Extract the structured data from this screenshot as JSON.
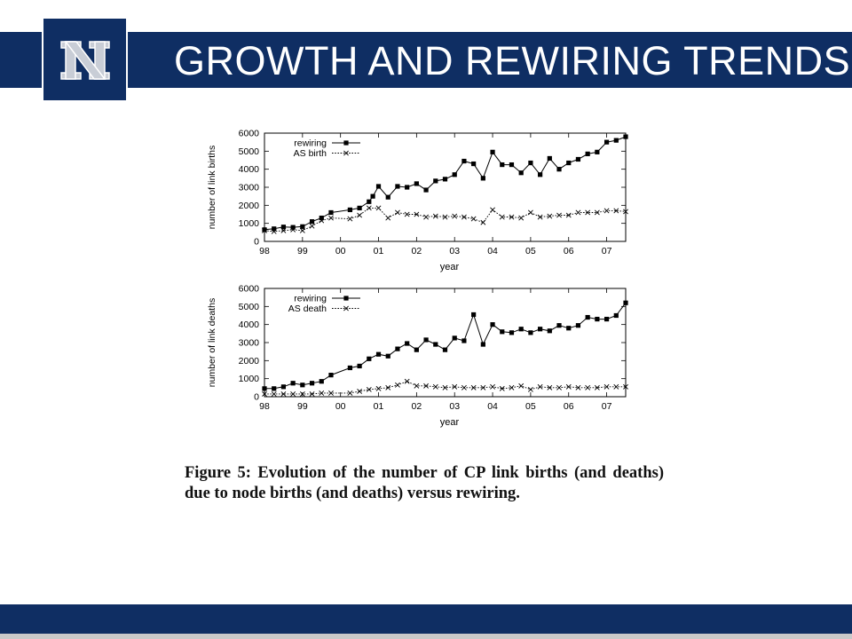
{
  "slide": {
    "title": "GROWTH AND REWIRING TRENDS",
    "logo_letter": "N",
    "caption": "Figure 5:  Evolution of the number of CP link births (and deaths) due to node births (and deaths) versus rewiring."
  },
  "colors": {
    "brand_navy": "#0f2e63",
    "logo_silver": "#c8cdd6",
    "footer_gray": "#c9c9c9"
  },
  "chart_data": [
    {
      "type": "line",
      "xlabel": "year",
      "ylabel": "number of link births",
      "x_ticks": [
        "98",
        "99",
        "00",
        "01",
        "02",
        "03",
        "04",
        "05",
        "06",
        "07"
      ],
      "y_ticks": [
        "0",
        "1000",
        "2000",
        "3000",
        "4000",
        "5000",
        "6000"
      ],
      "xlim": [
        1998,
        2007.5
      ],
      "ylim": [
        0,
        6000
      ],
      "legend_position": "top-left",
      "series": [
        {
          "name": "rewiring",
          "marker": "filled-square",
          "line": "solid",
          "points": [
            [
              1998.0,
              650
            ],
            [
              1998.25,
              700
            ],
            [
              1998.5,
              800
            ],
            [
              1998.75,
              780
            ],
            [
              1999.0,
              820
            ],
            [
              1999.25,
              1100
            ],
            [
              1999.5,
              1300
            ],
            [
              1999.75,
              1600
            ],
            [
              2000.25,
              1750
            ],
            [
              2000.5,
              1850
            ],
            [
              2000.75,
              2200
            ],
            [
              2000.85,
              2500
            ],
            [
              2001.0,
              3050
            ],
            [
              2001.25,
              2450
            ],
            [
              2001.5,
              3050
            ],
            [
              2001.75,
              3000
            ],
            [
              2002.0,
              3200
            ],
            [
              2002.25,
              2850
            ],
            [
              2002.5,
              3350
            ],
            [
              2002.75,
              3450
            ],
            [
              2003.0,
              3700
            ],
            [
              2003.25,
              4450
            ],
            [
              2003.5,
              4300
            ],
            [
              2003.75,
              3500
            ],
            [
              2004.0,
              4950
            ],
            [
              2004.25,
              4250
            ],
            [
              2004.5,
              4250
            ],
            [
              2004.75,
              3800
            ],
            [
              2005.0,
              4350
            ],
            [
              2005.25,
              3700
            ],
            [
              2005.5,
              4600
            ],
            [
              2005.75,
              4000
            ],
            [
              2006.0,
              4350
            ],
            [
              2006.25,
              4550
            ],
            [
              2006.5,
              4850
            ],
            [
              2006.75,
              4950
            ],
            [
              2007.0,
              5500
            ],
            [
              2007.25,
              5600
            ],
            [
              2007.5,
              5800
            ]
          ]
        },
        {
          "name": "AS birth",
          "marker": "cross",
          "line": "dotted",
          "points": [
            [
              1998.0,
              600
            ],
            [
              1998.25,
              550
            ],
            [
              1998.5,
              600
            ],
            [
              1998.75,
              650
            ],
            [
              1999.0,
              600
            ],
            [
              1999.25,
              850
            ],
            [
              1999.5,
              1150
            ],
            [
              1999.75,
              1300
            ],
            [
              2000.25,
              1250
            ],
            [
              2000.5,
              1450
            ],
            [
              2000.75,
              1850
            ],
            [
              2001.0,
              1850
            ],
            [
              2001.25,
              1300
            ],
            [
              2001.5,
              1600
            ],
            [
              2001.75,
              1500
            ],
            [
              2002.0,
              1500
            ],
            [
              2002.25,
              1350
            ],
            [
              2002.5,
              1400
            ],
            [
              2002.75,
              1350
            ],
            [
              2003.0,
              1400
            ],
            [
              2003.25,
              1350
            ],
            [
              2003.5,
              1250
            ],
            [
              2003.75,
              1050
            ],
            [
              2004.0,
              1750
            ],
            [
              2004.25,
              1350
            ],
            [
              2004.5,
              1350
            ],
            [
              2004.75,
              1300
            ],
            [
              2005.0,
              1600
            ],
            [
              2005.25,
              1350
            ],
            [
              2005.5,
              1400
            ],
            [
              2005.75,
              1450
            ],
            [
              2006.0,
              1450
            ],
            [
              2006.25,
              1600
            ],
            [
              2006.5,
              1600
            ],
            [
              2006.75,
              1600
            ],
            [
              2007.0,
              1700
            ],
            [
              2007.25,
              1700
            ],
            [
              2007.5,
              1650
            ]
          ]
        }
      ]
    },
    {
      "type": "line",
      "xlabel": "year",
      "ylabel": "number of link deaths",
      "x_ticks": [
        "98",
        "99",
        "00",
        "01",
        "02",
        "03",
        "04",
        "05",
        "06",
        "07"
      ],
      "y_ticks": [
        "0",
        "1000",
        "2000",
        "3000",
        "4000",
        "5000",
        "6000"
      ],
      "xlim": [
        1998,
        2007.5
      ],
      "ylim": [
        0,
        6000
      ],
      "legend_position": "top-left",
      "series": [
        {
          "name": "rewiring",
          "marker": "filled-square",
          "line": "solid",
          "points": [
            [
              1998.0,
              450
            ],
            [
              1998.25,
              450
            ],
            [
              1998.5,
              550
            ],
            [
              1998.75,
              750
            ],
            [
              1999.0,
              650
            ],
            [
              1999.25,
              750
            ],
            [
              1999.5,
              850
            ],
            [
              1999.75,
              1200
            ],
            [
              2000.25,
              1600
            ],
            [
              2000.5,
              1700
            ],
            [
              2000.75,
              2100
            ],
            [
              2001.0,
              2350
            ],
            [
              2001.25,
              2250
            ],
            [
              2001.5,
              2650
            ],
            [
              2001.75,
              2950
            ],
            [
              2002.0,
              2600
            ],
            [
              2002.25,
              3150
            ],
            [
              2002.5,
              2900
            ],
            [
              2002.75,
              2600
            ],
            [
              2003.0,
              3250
            ],
            [
              2003.25,
              3100
            ],
            [
              2003.5,
              4550
            ],
            [
              2003.75,
              2900
            ],
            [
              2004.0,
              4000
            ],
            [
              2004.25,
              3600
            ],
            [
              2004.5,
              3550
            ],
            [
              2004.75,
              3750
            ],
            [
              2005.0,
              3550
            ],
            [
              2005.25,
              3750
            ],
            [
              2005.5,
              3650
            ],
            [
              2005.75,
              3950
            ],
            [
              2006.0,
              3800
            ],
            [
              2006.25,
              3950
            ],
            [
              2006.5,
              4400
            ],
            [
              2006.75,
              4300
            ],
            [
              2007.0,
              4300
            ],
            [
              2007.25,
              4500
            ],
            [
              2007.5,
              5200
            ]
          ]
        },
        {
          "name": "AS death",
          "marker": "cross",
          "line": "dotted",
          "points": [
            [
              1998.0,
              150
            ],
            [
              1998.25,
              150
            ],
            [
              1998.5,
              150
            ],
            [
              1998.75,
              150
            ],
            [
              1999.0,
              150
            ],
            [
              1999.25,
              150
            ],
            [
              1999.5,
              200
            ],
            [
              1999.75,
              200
            ],
            [
              2000.25,
              200
            ],
            [
              2000.5,
              300
            ],
            [
              2000.75,
              400
            ],
            [
              2001.0,
              450
            ],
            [
              2001.25,
              500
            ],
            [
              2001.5,
              650
            ],
            [
              2001.75,
              850
            ],
            [
              2002.0,
              600
            ],
            [
              2002.25,
              600
            ],
            [
              2002.5,
              550
            ],
            [
              2002.75,
              500
            ],
            [
              2003.0,
              550
            ],
            [
              2003.25,
              500
            ],
            [
              2003.5,
              500
            ],
            [
              2003.75,
              500
            ],
            [
              2004.0,
              550
            ],
            [
              2004.25,
              450
            ],
            [
              2004.5,
              500
            ],
            [
              2004.75,
              600
            ],
            [
              2005.0,
              400
            ],
            [
              2005.25,
              550
            ],
            [
              2005.5,
              500
            ],
            [
              2005.75,
              500
            ],
            [
              2006.0,
              550
            ],
            [
              2006.25,
              500
            ],
            [
              2006.5,
              500
            ],
            [
              2006.75,
              500
            ],
            [
              2007.0,
              550
            ],
            [
              2007.25,
              550
            ],
            [
              2007.5,
              550
            ]
          ]
        }
      ]
    }
  ]
}
